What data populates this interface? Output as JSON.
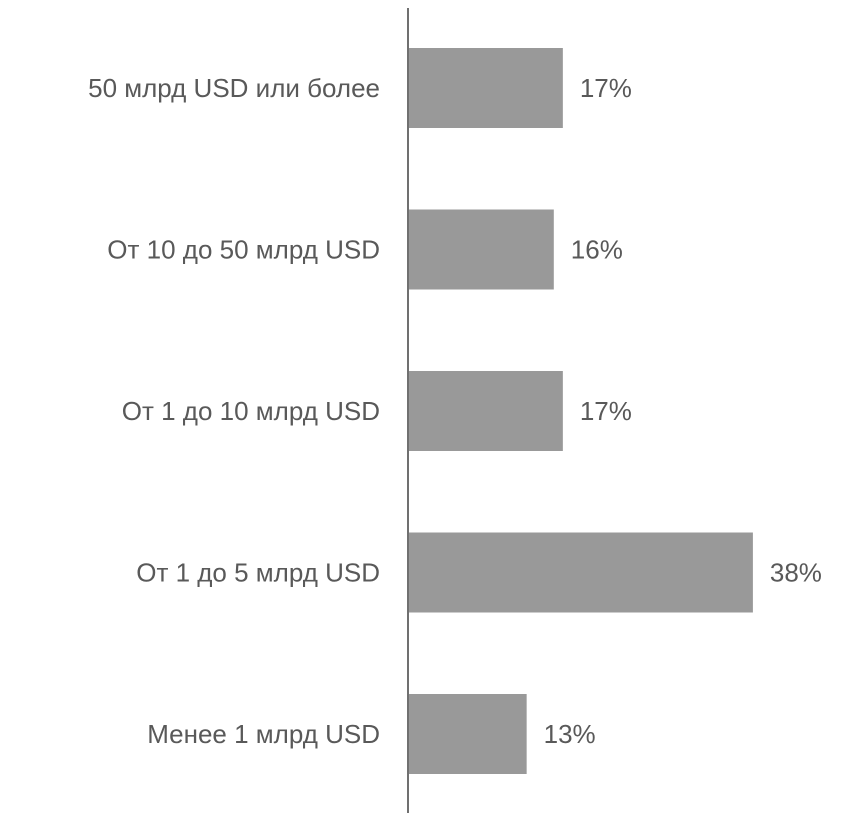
{
  "chart_data": {
    "type": "hbar",
    "categories": [
      "50 млрд USD или более",
      "От 10 до 50 млрд USD",
      "От 1 до 10 млрд USD",
      "От 1 до 5 млрд USD",
      "Менее 1 млрд USD"
    ],
    "values": [
      17,
      16,
      17,
      38,
      13
    ],
    "value_labels": [
      "17%",
      "16%",
      "17%",
      "38%",
      "13%"
    ],
    "color": "#999999"
  }
}
